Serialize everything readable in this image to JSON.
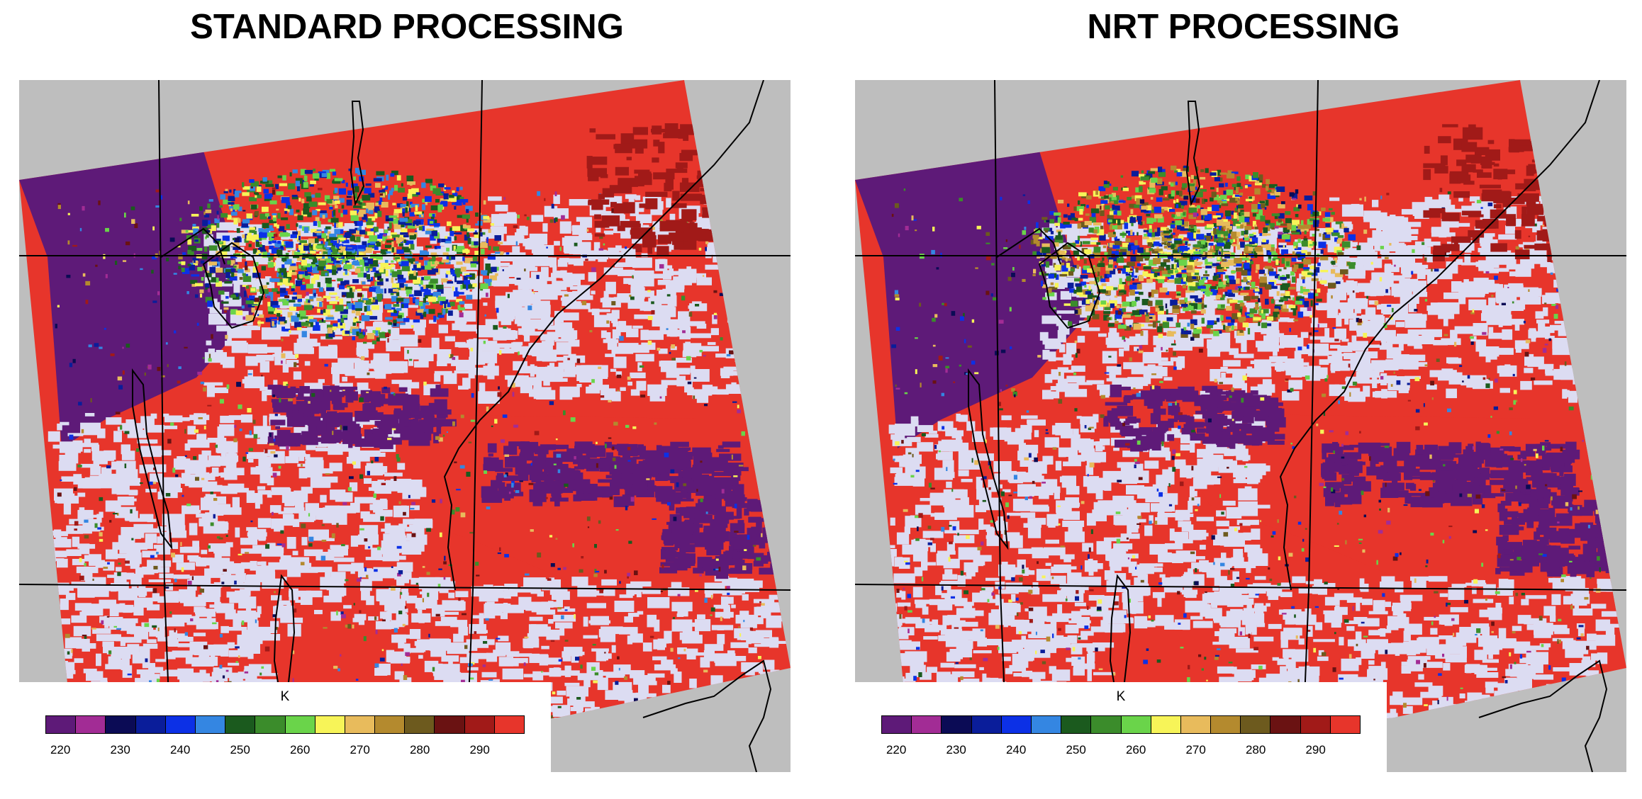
{
  "panels": [
    {
      "title": "STANDARD PROCESSING",
      "variant": "standard"
    },
    {
      "title": "NRT PROCESSING",
      "variant": "nrt"
    }
  ],
  "legend": {
    "unit": "K",
    "colors": [
      "#5e1a78",
      "#a22c95",
      "#0b0b55",
      "#0a1d9a",
      "#0c30e6",
      "#3486e2",
      "#1b5a1e",
      "#3b8c2b",
      "#6ad44a",
      "#f7f458",
      "#e8bb5c",
      "#b48a2e",
      "#6d5a1e",
      "#6a1212",
      "#a11a18",
      "#e7352b"
    ],
    "ticks": [
      "220",
      "230",
      "240",
      "250",
      "260",
      "270",
      "280",
      "290"
    ]
  },
  "map_colors": {
    "background": "#bebebe",
    "clear_sky": "#dcdcf2",
    "warm_surface": "#e7352b",
    "cold_top": "#5e1a78",
    "coastline": "#000000",
    "grid": "#000000"
  }
}
